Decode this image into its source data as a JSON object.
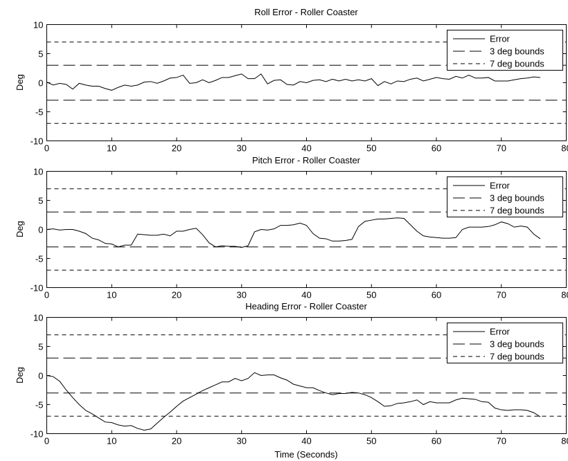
{
  "chart_data": [
    {
      "type": "line",
      "title": "Roll Error - Roller Coaster",
      "xlabel": "",
      "ylabel": "Deg",
      "xlim": [
        0,
        80
      ],
      "ylim": [
        -10,
        10
      ],
      "xticks": [
        0,
        10,
        20,
        30,
        40,
        50,
        60,
        70,
        80
      ],
      "yticks": [
        -10,
        -5,
        0,
        5,
        10
      ],
      "grid": false,
      "legend_position": "top-right",
      "series": [
        {
          "name": "Error",
          "style": "solid",
          "x": [
            0,
            1,
            2,
            3,
            4,
            5,
            6,
            7,
            8,
            9,
            10,
            11,
            12,
            13,
            14,
            15,
            16,
            17,
            18,
            19,
            20,
            21,
            22,
            23,
            24,
            25,
            26,
            27,
            28,
            29,
            30,
            31,
            32,
            33,
            34,
            35,
            36,
            37,
            38,
            39,
            40,
            41,
            42,
            43,
            44,
            45,
            46,
            47,
            48,
            49,
            50,
            51,
            52,
            53,
            54,
            55,
            56,
            57,
            58,
            59,
            60,
            61,
            62,
            63,
            64,
            65,
            66,
            67,
            68,
            69,
            70,
            71,
            72,
            73,
            74,
            75,
            76
          ],
          "y": [
            0.1,
            -0.4,
            -0.1,
            -0.3,
            -1.1,
            -0.1,
            -0.4,
            -0.6,
            -0.6,
            -1.0,
            -1.3,
            -0.8,
            -0.4,
            -0.6,
            -0.4,
            0.1,
            0.2,
            -0.1,
            0.3,
            0.8,
            0.9,
            1.3,
            -0.1,
            0.0,
            0.5,
            0.0,
            0.4,
            0.9,
            0.9,
            1.2,
            1.5,
            0.7,
            0.7,
            1.5,
            -0.2,
            0.4,
            0.5,
            -0.3,
            -0.4,
            0.2,
            0.0,
            0.4,
            0.5,
            0.2,
            0.6,
            0.3,
            0.6,
            0.3,
            0.5,
            0.3,
            0.7,
            -0.5,
            0.2,
            -0.2,
            0.3,
            0.2,
            0.6,
            0.8,
            0.3,
            0.6,
            0.9,
            0.7,
            0.6,
            1.1,
            0.8,
            1.3,
            0.8,
            0.8,
            0.9,
            0.3,
            0.3,
            0.3,
            0.5,
            0.7,
            0.8,
            1.0,
            0.9
          ]
        },
        {
          "name": "3 deg bounds",
          "style": "longdash",
          "y_values": [
            3,
            -3
          ]
        },
        {
          "name": "7 deg bounds",
          "style": "shortdash",
          "y_values": [
            7,
            -7
          ]
        }
      ]
    },
    {
      "type": "line",
      "title": "Pitch Error - Roller Coaster",
      "xlabel": "",
      "ylabel": "Deg",
      "xlim": [
        0,
        80
      ],
      "ylim": [
        -10,
        10
      ],
      "xticks": [
        0,
        10,
        20,
        30,
        40,
        50,
        60,
        70,
        80
      ],
      "yticks": [
        -10,
        -5,
        0,
        5,
        10
      ],
      "grid": false,
      "legend_position": "top-right",
      "series": [
        {
          "name": "Error",
          "style": "solid",
          "x": [
            0,
            1,
            2,
            3,
            4,
            5,
            6,
            7,
            8,
            9,
            10,
            11,
            12,
            13,
            14,
            15,
            16,
            17,
            18,
            19,
            20,
            21,
            22,
            23,
            24,
            25,
            26,
            27,
            28,
            29,
            30,
            31,
            32,
            33,
            34,
            35,
            36,
            37,
            38,
            39,
            40,
            41,
            42,
            43,
            44,
            45,
            46,
            47,
            48,
            49,
            50,
            51,
            52,
            53,
            54,
            55,
            56,
            57,
            58,
            59,
            60,
            61,
            62,
            63,
            64,
            65,
            66,
            67,
            68,
            69,
            70,
            71,
            72,
            73,
            74,
            75,
            76
          ],
          "y": [
            0.0,
            0.1,
            -0.1,
            0.0,
            0.0,
            -0.3,
            -0.7,
            -1.5,
            -1.8,
            -2.4,
            -2.5,
            -3.0,
            -2.7,
            -2.7,
            -0.8,
            -0.9,
            -1.0,
            -1.0,
            -0.8,
            -1.1,
            -0.3,
            -0.3,
            0.0,
            0.2,
            -0.9,
            -2.3,
            -3.0,
            -2.8,
            -2.9,
            -2.9,
            -3.1,
            -2.8,
            -0.4,
            0.0,
            -0.1,
            0.1,
            0.7,
            0.7,
            0.8,
            1.1,
            0.7,
            -0.7,
            -1.5,
            -1.6,
            -2.0,
            -2.0,
            -1.9,
            -1.7,
            0.5,
            1.4,
            1.6,
            1.8,
            1.8,
            1.9,
            2.0,
            1.9,
            0.8,
            -0.3,
            -1.1,
            -1.3,
            -1.4,
            -1.5,
            -1.5,
            -1.4,
            0.0,
            0.4,
            0.4,
            0.4,
            0.5,
            0.8,
            1.3,
            1.0,
            0.4,
            0.6,
            0.4,
            -0.8,
            -1.6
          ]
        },
        {
          "name": "3 deg bounds",
          "style": "longdash",
          "y_values": [
            3,
            -3
          ]
        },
        {
          "name": "7 deg bounds",
          "style": "shortdash",
          "y_values": [
            7,
            -7
          ]
        }
      ]
    },
    {
      "type": "line",
      "title": "Heading Error - Roller Coaster",
      "xlabel": "Time (Seconds)",
      "ylabel": "Deg",
      "xlim": [
        0,
        80
      ],
      "ylim": [
        -10,
        10
      ],
      "xticks": [
        0,
        10,
        20,
        30,
        40,
        50,
        60,
        70,
        80
      ],
      "yticks": [
        -10,
        -5,
        0,
        5,
        10
      ],
      "grid": false,
      "legend_position": "top-right",
      "series": [
        {
          "name": "Error",
          "style": "solid",
          "x": [
            0,
            1,
            2,
            3,
            4,
            5,
            6,
            7,
            8,
            9,
            10,
            11,
            12,
            13,
            14,
            15,
            16,
            17,
            18,
            19,
            20,
            21,
            22,
            23,
            24,
            25,
            26,
            27,
            28,
            29,
            30,
            31,
            32,
            33,
            34,
            35,
            36,
            37,
            38,
            39,
            40,
            41,
            42,
            43,
            44,
            45,
            46,
            47,
            48,
            49,
            50,
            51,
            52,
            53,
            54,
            55,
            56,
            57,
            58,
            59,
            60,
            61,
            62,
            63,
            64,
            65,
            66,
            67,
            68,
            69,
            70,
            71,
            72,
            73,
            74,
            75,
            76
          ],
          "y": [
            0.0,
            -0.2,
            -1.0,
            -2.5,
            -3.8,
            -5.0,
            -6.0,
            -6.6,
            -7.3,
            -8.0,
            -8.1,
            -8.5,
            -8.7,
            -8.6,
            -9.1,
            -9.4,
            -9.2,
            -8.2,
            -7.2,
            -6.3,
            -5.3,
            -4.4,
            -3.8,
            -3.2,
            -2.6,
            -2.1,
            -1.6,
            -1.1,
            -1.1,
            -0.5,
            -0.9,
            -0.5,
            0.5,
            0.0,
            0.1,
            0.1,
            -0.4,
            -0.8,
            -1.5,
            -1.8,
            -2.1,
            -2.1,
            -2.6,
            -3.0,
            -3.3,
            -3.1,
            -3.1,
            -2.9,
            -3.0,
            -3.3,
            -3.8,
            -4.5,
            -5.3,
            -5.2,
            -4.8,
            -4.7,
            -4.5,
            -4.2,
            -5.0,
            -4.5,
            -4.7,
            -4.7,
            -4.7,
            -4.2,
            -3.9,
            -4.0,
            -4.1,
            -4.5,
            -4.6,
            -5.6,
            -5.9,
            -6.0,
            -5.9,
            -5.9,
            -6.0,
            -6.4,
            -7.1
          ]
        },
        {
          "name": "3 deg bounds",
          "style": "longdash",
          "y_values": [
            3,
            -3
          ]
        },
        {
          "name": "7 deg bounds",
          "style": "shortdash",
          "y_values": [
            7,
            -7
          ]
        }
      ]
    }
  ]
}
